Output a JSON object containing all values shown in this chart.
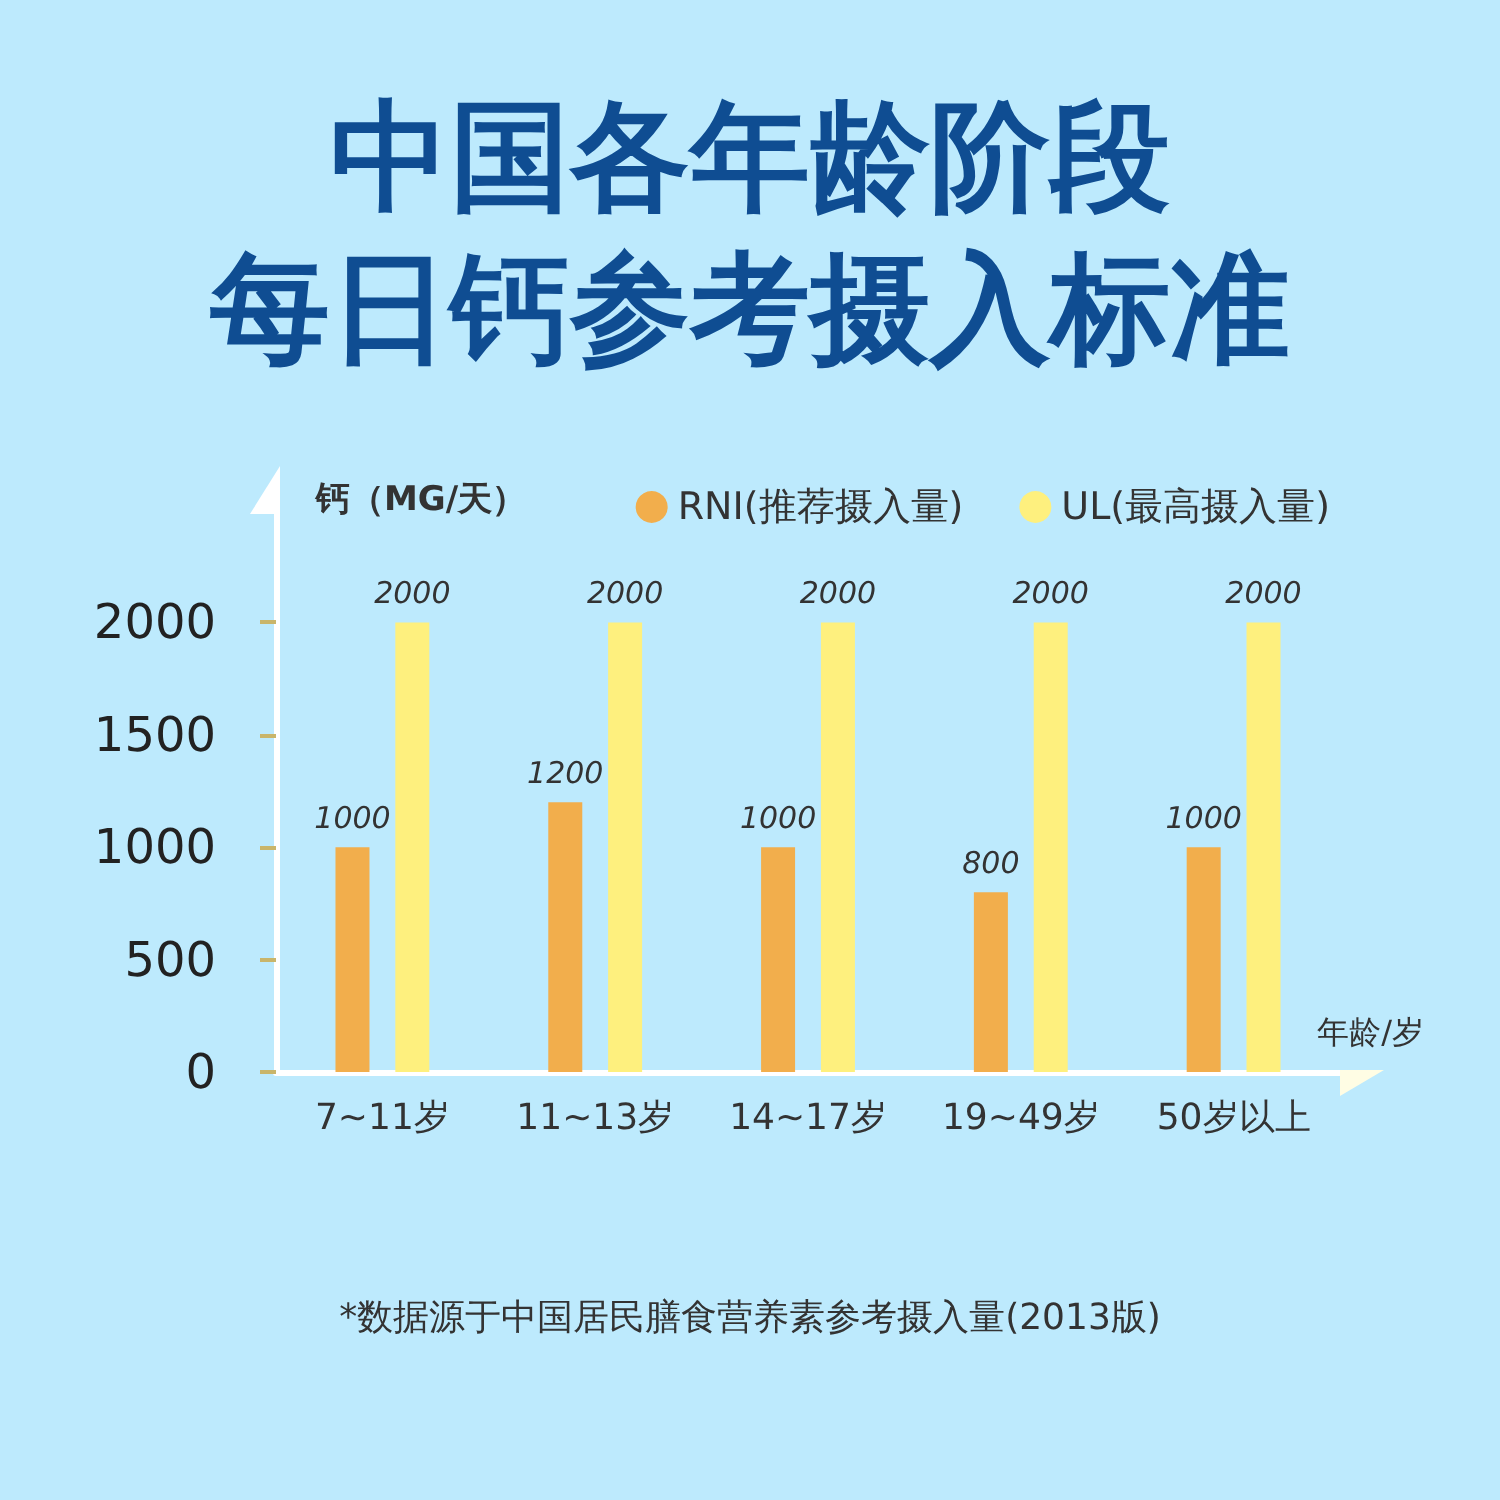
{
  "chart_data": {
    "type": "bar",
    "title": "中国各年龄阶段每日钙参考摄入标准",
    "ylabel": "钙（MG/天）",
    "xlabel": "年龄/岁",
    "annotations": [
      "*数据源于中国居民膳食营养素参考摄入量(2013版)"
    ],
    "categories": [
      "7~11岁",
      "11~13岁",
      "14~17岁",
      "19~49岁",
      "50岁以上"
    ],
    "series": [
      {
        "name": "RNI(推荐摄入量)",
        "color": "#f2ae4c",
        "values": [
          1000,
          1200,
          1000,
          800,
          1000
        ]
      },
      {
        "name": "UL(最高摄入量)",
        "color": "#fef07e",
        "values": [
          2000,
          2000,
          2000,
          2000,
          2000
        ]
      }
    ],
    "ylim": [
      0,
      2500
    ],
    "yticks": [
      0,
      500,
      1000,
      1500,
      2000
    ],
    "data_labels": true,
    "legend": "top right",
    "grid": false
  }
}
